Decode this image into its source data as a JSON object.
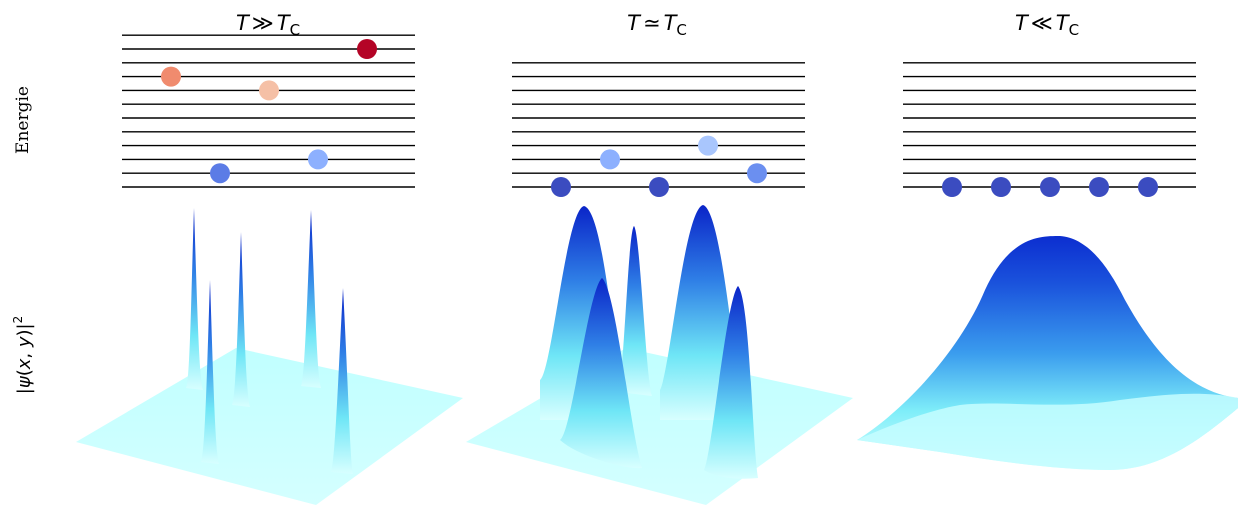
{
  "labels": {
    "energy_axis": "Energie",
    "wave_axis": {
      "open": "|",
      "psi": "ψ",
      "args_open": "(",
      "x": "x",
      "comma": ", ",
      "y": "y",
      "args_close": ")",
      "close": "|",
      "power": "2"
    }
  },
  "panels": [
    {
      "title": {
        "T": "T",
        "rel": "≫",
        "Tc": "T",
        "sub": "C"
      },
      "levels": 12,
      "particles": [
        {
          "level": 10,
          "slot": 5,
          "color": "#b40426"
        },
        {
          "level": 8,
          "slot": 1,
          "color": "#f08b6e"
        },
        {
          "level": 7,
          "slot": 3,
          "color": "#f5c0a6"
        },
        {
          "level": 2,
          "slot": 4,
          "color": "#8db0fe"
        },
        {
          "level": 1,
          "slot": 2,
          "color": "#5b7ce6"
        }
      ],
      "wavefunction": "narrow-peaks"
    },
    {
      "title": {
        "T": "T",
        "rel": "≃",
        "Tc": "T",
        "sub": "C"
      },
      "levels": 10,
      "particles": [
        {
          "level": 3,
          "slot": 4,
          "color": "#a9c6fd"
        },
        {
          "level": 2,
          "slot": 2,
          "color": "#8db0fe"
        },
        {
          "level": 1,
          "slot": 5,
          "color": "#6b8ff0"
        },
        {
          "level": 0,
          "slot": 1,
          "color": "#3b4cc0"
        },
        {
          "level": 0,
          "slot": 3,
          "color": "#3b4cc0"
        }
      ],
      "wavefunction": "broad-peaks"
    },
    {
      "title": {
        "T": "T",
        "rel": "≪",
        "Tc": "T",
        "sub": "C"
      },
      "levels": 10,
      "particles": [
        {
          "level": 0,
          "slot": 1,
          "color": "#3b4cc0"
        },
        {
          "level": 0,
          "slot": 2,
          "color": "#3b4cc0"
        },
        {
          "level": 0,
          "slot": 3,
          "color": "#3b4cc0"
        },
        {
          "level": 0,
          "slot": 4,
          "color": "#3b4cc0"
        },
        {
          "level": 0,
          "slot": 5,
          "color": "#3b4cc0"
        }
      ],
      "wavefunction": "single-gaussian"
    }
  ],
  "colors": {
    "level_line": "#000000",
    "surface_base": "#c8ffff",
    "surface_peak": "#0a2ad0"
  }
}
